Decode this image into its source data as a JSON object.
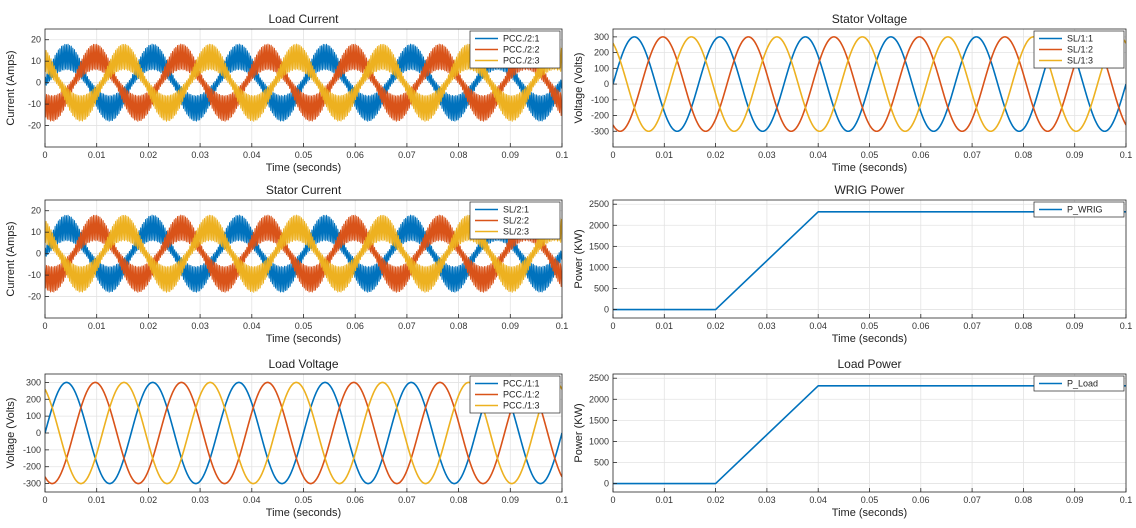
{
  "colors": {
    "s1": "#0072BD",
    "s2": "#D95319",
    "s3": "#EDB120"
  },
  "chart_data": [
    {
      "id": "load-current",
      "type": "line",
      "kind": "sine_noisy",
      "title": "Load Current",
      "xlabel": "Time (seconds)",
      "ylabel": "Current (Amps)",
      "xlim": [
        0,
        0.1
      ],
      "ylim": [
        -30,
        25
      ],
      "xticks": [
        0,
        0.01,
        0.02,
        0.03,
        0.04,
        0.05,
        0.06,
        0.07,
        0.08,
        0.09,
        0.1
      ],
      "xticklabels": [
        "0",
        "0.01",
        "0.02",
        "0.03",
        "0.04",
        "0.05",
        "0.06",
        "0.07",
        "0.08",
        "0.09",
        "0.1"
      ],
      "yticks": [
        -20,
        -10,
        0,
        10,
        20
      ],
      "yticklabels": [
        "-20",
        "-10",
        "0",
        "10",
        "20"
      ],
      "grid": true,
      "legend_position": "top-right",
      "frequency_hz": 60,
      "amplitude": 12,
      "ripple": 6,
      "series": [
        {
          "name": "PCC./2:1",
          "phase_deg": 0
        },
        {
          "name": "PCC./2:2",
          "phase_deg": -120
        },
        {
          "name": "PCC./2:3",
          "phase_deg": 120
        }
      ]
    },
    {
      "id": "stator-voltage",
      "type": "line",
      "kind": "sine",
      "title": "Stator Voltage",
      "xlabel": "Time (seconds)",
      "ylabel": "Voltage (Volts)",
      "xlim": [
        0,
        0.1
      ],
      "ylim": [
        -400,
        350
      ],
      "xticks": [
        0,
        0.01,
        0.02,
        0.03,
        0.04,
        0.05,
        0.06,
        0.07,
        0.08,
        0.09,
        0.1
      ],
      "xticklabels": [
        "0",
        "0.01",
        "0.02",
        "0.03",
        "0.04",
        "0.05",
        "0.06",
        "0.07",
        "0.08",
        "0.09",
        "0.1"
      ],
      "yticks": [
        -300,
        -200,
        -100,
        0,
        100,
        200,
        300
      ],
      "yticklabels": [
        "-300",
        "-200",
        "-100",
        "0",
        "100",
        "200",
        "300"
      ],
      "grid": true,
      "legend_position": "top-right",
      "frequency_hz": 60,
      "amplitude": 300,
      "series": [
        {
          "name": "SL/1:1",
          "phase_deg": 0
        },
        {
          "name": "SL/1:2",
          "phase_deg": -120
        },
        {
          "name": "SL/1:3",
          "phase_deg": 120
        }
      ]
    },
    {
      "id": "stator-current",
      "type": "line",
      "kind": "sine_noisy",
      "title": "Stator Current",
      "xlabel": "Time (seconds)",
      "ylabel": "Current (Amps)",
      "xlim": [
        0,
        0.1
      ],
      "ylim": [
        -30,
        25
      ],
      "xticks": [
        0,
        0.01,
        0.02,
        0.03,
        0.04,
        0.05,
        0.06,
        0.07,
        0.08,
        0.09,
        0.1
      ],
      "xticklabels": [
        "0",
        "0.01",
        "0.02",
        "0.03",
        "0.04",
        "0.05",
        "0.06",
        "0.07",
        "0.08",
        "0.09",
        "0.1"
      ],
      "yticks": [
        -20,
        -10,
        0,
        10,
        20
      ],
      "yticklabels": [
        "-20",
        "-10",
        "0",
        "10",
        "20"
      ],
      "grid": true,
      "legend_position": "top-right",
      "frequency_hz": 60,
      "amplitude": 12,
      "ripple": 6,
      "series": [
        {
          "name": "SL/2:1",
          "phase_deg": 0
        },
        {
          "name": "SL/2:2",
          "phase_deg": -120
        },
        {
          "name": "SL/2:3",
          "phase_deg": 120
        }
      ]
    },
    {
      "id": "wrig-power",
      "type": "line",
      "kind": "piecewise",
      "title": "WRIG Power",
      "xlabel": "Time (seconds)",
      "ylabel": "Power (KW)",
      "xlim": [
        0,
        0.1
      ],
      "ylim": [
        -200,
        2600
      ],
      "xticks": [
        0,
        0.01,
        0.02,
        0.03,
        0.04,
        0.05,
        0.06,
        0.07,
        0.08,
        0.09,
        0.1
      ],
      "xticklabels": [
        "0",
        "0.01",
        "0.02",
        "0.03",
        "0.04",
        "0.05",
        "0.06",
        "0.07",
        "0.08",
        "0.09",
        "0.1"
      ],
      "yticks": [
        0,
        500,
        1000,
        1500,
        2000,
        2500
      ],
      "yticklabels": [
        "0",
        "500",
        "1000",
        "1500",
        "2000",
        "2500"
      ],
      "grid": true,
      "legend_position": "top-right",
      "series": [
        {
          "name": "P_WRIG",
          "x": [
            0,
            0.02,
            0.04,
            0.1
          ],
          "y": [
            0,
            0,
            2320,
            2320
          ]
        }
      ]
    },
    {
      "id": "load-voltage",
      "type": "line",
      "kind": "sine",
      "title": "Load Voltage",
      "xlabel": "Time (seconds)",
      "ylabel": "Voltage (Volts)",
      "xlim": [
        0,
        0.1
      ],
      "ylim": [
        -350,
        350
      ],
      "xticks": [
        0,
        0.01,
        0.02,
        0.03,
        0.04,
        0.05,
        0.06,
        0.07,
        0.08,
        0.09,
        0.1
      ],
      "xticklabels": [
        "0",
        "0.01",
        "0.02",
        "0.03",
        "0.04",
        "0.05",
        "0.06",
        "0.07",
        "0.08",
        "0.09",
        "0.1"
      ],
      "yticks": [
        -300,
        -200,
        -100,
        0,
        100,
        200,
        300
      ],
      "yticklabels": [
        "-300",
        "-200",
        "-100",
        "0",
        "100",
        "200",
        "300"
      ],
      "grid": true,
      "legend_position": "top-right",
      "frequency_hz": 60,
      "amplitude": 300,
      "series": [
        {
          "name": "PCC./1:1",
          "phase_deg": 0
        },
        {
          "name": "PCC./1:2",
          "phase_deg": -120
        },
        {
          "name": "PCC./1:3",
          "phase_deg": 120
        }
      ]
    },
    {
      "id": "load-power",
      "type": "line",
      "kind": "piecewise",
      "title": "Load Power",
      "xlabel": "Time (seconds)",
      "ylabel": "Power (KW)",
      "xlim": [
        0,
        0.1
      ],
      "ylim": [
        -200,
        2600
      ],
      "xticks": [
        0,
        0.01,
        0.02,
        0.03,
        0.04,
        0.05,
        0.06,
        0.07,
        0.08,
        0.09,
        0.1
      ],
      "xticklabels": [
        "0",
        "0.01",
        "0.02",
        "0.03",
        "0.04",
        "0.05",
        "0.06",
        "0.07",
        "0.08",
        "0.09",
        "0.1"
      ],
      "yticks": [
        0,
        500,
        1000,
        1500,
        2000,
        2500
      ],
      "yticklabels": [
        "0",
        "500",
        "1000",
        "1500",
        "2000",
        "2500"
      ],
      "grid": true,
      "legend_position": "top-right",
      "series": [
        {
          "name": "P_Load",
          "x": [
            0,
            0.02,
            0.04,
            0.1
          ],
          "y": [
            0,
            0,
            2320,
            2320
          ]
        }
      ]
    }
  ]
}
